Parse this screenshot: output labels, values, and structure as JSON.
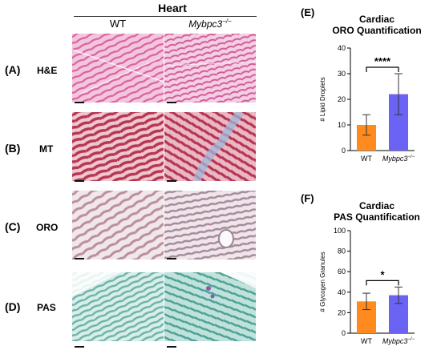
{
  "figure": {
    "heart_title": "Heart",
    "col_wt": "WT",
    "col_ko_base": "Mybpc3",
    "col_ko_sup": "−/−",
    "rows": [
      {
        "letter": "(A)",
        "stain": "H&E"
      },
      {
        "letter": "(B)",
        "stain": "MT"
      },
      {
        "letter": "(C)",
        "stain": "ORO"
      },
      {
        "letter": "(D)",
        "stain": "PAS"
      }
    ],
    "colors": {
      "he": "#e58bbf",
      "mt": "#c2445e",
      "oro": "#cdb6bd",
      "pas": "#9fd0c6",
      "wt_bar": "#ff8a1e",
      "ko_bar": "#6a63f4"
    }
  },
  "chart_data": [
    {
      "panel": "(E)",
      "type": "bar",
      "title_line1": "Cardiac",
      "title_line2": "ORO Quantification",
      "ylabel": "# Lipid Droplets",
      "categories": [
        "WT",
        "Mybpc3"
      ],
      "category_sup": [
        "",
        "−/−"
      ],
      "values": [
        10,
        22
      ],
      "errors": [
        4,
        8
      ],
      "ylim": [
        0,
        40
      ],
      "yticks": [
        0,
        10,
        20,
        30,
        40
      ],
      "significance": "****"
    },
    {
      "panel": "(F)",
      "type": "bar",
      "title_line1": "Cardiac",
      "title_line2": "PAS Quantification",
      "ylabel": "# Glycogen Granules",
      "categories": [
        "WT",
        "Mybpc3"
      ],
      "category_sup": [
        "",
        "−/−"
      ],
      "values": [
        31,
        37
      ],
      "errors": [
        8,
        8
      ],
      "ylim": [
        0,
        100
      ],
      "yticks": [
        0,
        20,
        40,
        60,
        80,
        100
      ],
      "significance": "*"
    }
  ]
}
